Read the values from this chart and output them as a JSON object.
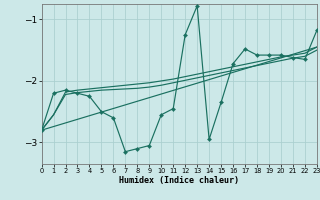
{
  "xlabel": "Humidex (Indice chaleur)",
  "bg_color": "#cce8e8",
  "grid_color": "#aacfcf",
  "line_color": "#1a7060",
  "xlim": [
    0,
    23
  ],
  "ylim": [
    -3.35,
    -0.75
  ],
  "yticks": [
    -3,
    -2,
    -1
  ],
  "xticks": [
    0,
    1,
    2,
    3,
    4,
    5,
    6,
    7,
    8,
    9,
    10,
    11,
    12,
    13,
    14,
    15,
    16,
    17,
    18,
    19,
    20,
    21,
    22,
    23
  ],
  "line1_x": [
    0,
    1,
    2,
    3,
    4,
    5,
    6,
    7,
    8,
    9,
    10,
    11,
    12,
    13,
    14,
    15,
    16,
    17,
    18,
    19,
    20,
    21,
    22,
    23
  ],
  "line1_y": [
    -2.8,
    -2.2,
    -2.15,
    -2.2,
    -2.25,
    -2.5,
    -2.6,
    -3.15,
    -3.1,
    -3.05,
    -2.55,
    -2.45,
    -1.25,
    -0.78,
    -2.95,
    -2.35,
    -1.72,
    -1.48,
    -1.58,
    -1.58,
    -1.58,
    -1.62,
    -1.65,
    -1.18
  ],
  "line2_x": [
    0,
    2,
    23
  ],
  "line2_y": [
    -2.8,
    -2.18,
    -1.45
  ],
  "line3_x": [
    0,
    2,
    23
  ],
  "line3_y": [
    -2.8,
    -2.22,
    -1.5
  ],
  "line4_x": [
    0,
    23
  ],
  "line4_y": [
    -2.8,
    -1.45
  ],
  "smooth2_x": [
    0,
    1,
    2,
    3,
    4,
    5,
    6,
    7,
    8,
    9,
    10,
    11,
    12,
    13,
    14,
    15,
    16,
    17,
    18,
    19,
    20,
    21,
    22,
    23
  ],
  "smooth2_y": [
    -2.8,
    -2.55,
    -2.18,
    -2.15,
    -2.13,
    -2.11,
    -2.09,
    -2.07,
    -2.05,
    -2.03,
    -2.0,
    -1.97,
    -1.93,
    -1.89,
    -1.85,
    -1.81,
    -1.77,
    -1.73,
    -1.69,
    -1.65,
    -1.61,
    -1.58,
    -1.55,
    -1.45
  ],
  "smooth3_x": [
    0,
    1,
    2,
    3,
    4,
    5,
    6,
    7,
    8,
    9,
    10,
    11,
    12,
    13,
    14,
    15,
    16,
    17,
    18,
    19,
    20,
    21,
    22,
    23
  ],
  "smooth3_y": [
    -2.8,
    -2.55,
    -2.22,
    -2.19,
    -2.17,
    -2.15,
    -2.14,
    -2.13,
    -2.12,
    -2.1,
    -2.07,
    -2.03,
    -1.99,
    -1.95,
    -1.91,
    -1.87,
    -1.83,
    -1.79,
    -1.75,
    -1.71,
    -1.67,
    -1.63,
    -1.6,
    -1.5
  ]
}
